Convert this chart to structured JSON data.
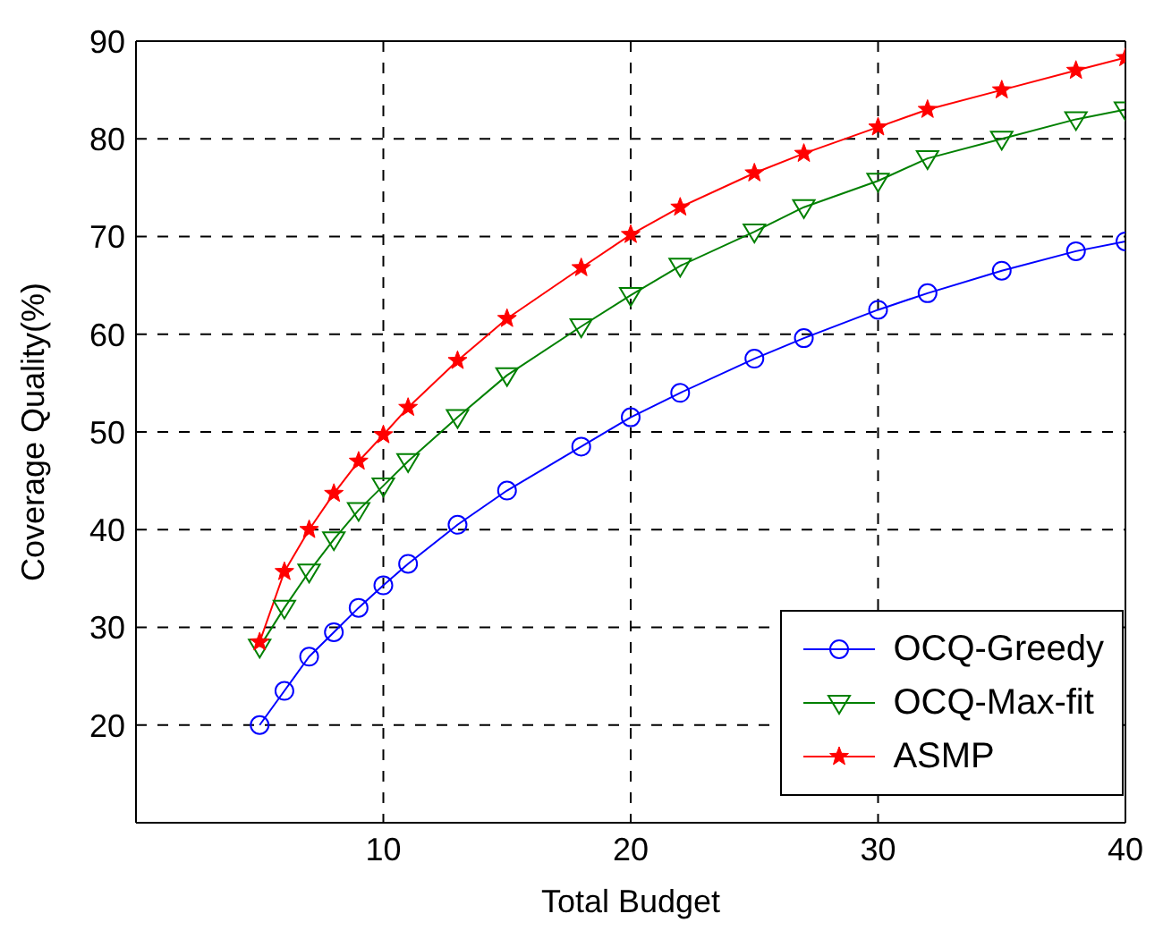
{
  "chart_data": {
    "type": "line",
    "xlabel": "Total Budget",
    "ylabel": "Coverage Quality(%)",
    "x": [
      5,
      6,
      7,
      8,
      9,
      10,
      11,
      13,
      15,
      18,
      20,
      22,
      25,
      27,
      30,
      32,
      35,
      38,
      40
    ],
    "series": [
      {
        "name": "OCQ-Greedy",
        "color": "#0000ff",
        "marker": "circle",
        "values": [
          20,
          23.5,
          27,
          29.5,
          32,
          34.3,
          36.5,
          40.5,
          44,
          48.5,
          51.5,
          54,
          57.5,
          59.6,
          62.5,
          64.2,
          66.5,
          68.5,
          69.5
        ]
      },
      {
        "name": "OCQ-Max-fit",
        "color": "#008000",
        "marker": "triangle",
        "values": [
          28,
          32,
          35.7,
          39,
          42,
          44.5,
          47,
          51.5,
          55.8,
          60.8,
          64,
          67,
          70.5,
          73,
          75.7,
          78,
          80,
          82,
          83
        ]
      },
      {
        "name": "ASMP",
        "color": "#ff0000",
        "marker": "star",
        "values": [
          28.5,
          35.7,
          40,
          43.7,
          47,
          49.7,
          52.5,
          57.3,
          61.6,
          66.8,
          70.2,
          73,
          76.5,
          78.5,
          81.2,
          83,
          85,
          87,
          88.3
        ]
      }
    ],
    "xlim": [
      0,
      40
    ],
    "xticks": [
      10,
      20,
      30,
      40
    ],
    "ylim": [
      10,
      90
    ],
    "yticks": [
      20,
      30,
      40,
      50,
      60,
      70,
      80,
      90
    ],
    "grid": true,
    "legend": "bottom right",
    "line_style": "solid"
  }
}
